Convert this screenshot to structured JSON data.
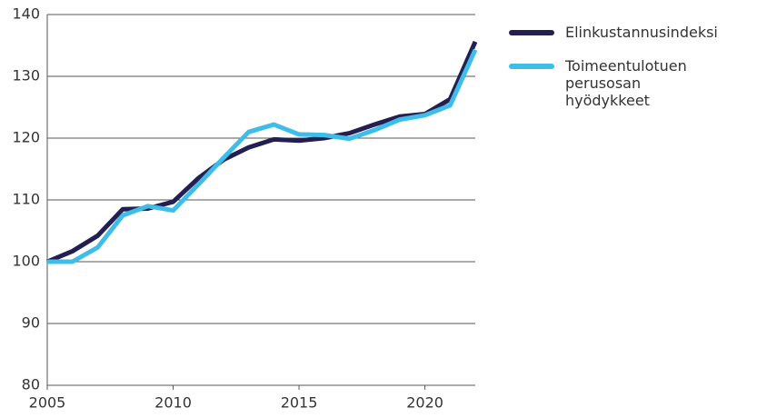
{
  "chart_data": {
    "type": "line",
    "x": [
      2005,
      2006,
      2007,
      2008,
      2009,
      2010,
      2011,
      2012,
      2013,
      2014,
      2015,
      2016,
      2017,
      2018,
      2019,
      2020,
      2021,
      2022
    ],
    "series": [
      {
        "name": "Elinkustannusindeksi",
        "color": "#231f52",
        "values": [
          100,
          101.7,
          104.2,
          108.5,
          108.6,
          109.7,
          113.5,
          116.5,
          118.5,
          119.8,
          119.6,
          120,
          120.8,
          122.2,
          123.5,
          123.9,
          126.3,
          135.6
        ]
      },
      {
        "name": "Toimeentulotuen perusosan hyödykkeet",
        "color": "#3dbde8",
        "values": [
          100,
          100,
          102.3,
          107.5,
          109,
          108.3,
          112.5,
          116.8,
          121,
          122.2,
          120.6,
          120.5,
          119.9,
          121.3,
          123,
          123.7,
          125.3,
          134.3
        ]
      }
    ],
    "xlim": [
      2005,
      2022
    ],
    "xticks": [
      2005,
      2010,
      2015,
      2020
    ],
    "ylim": [
      80,
      140
    ],
    "yticks": [
      80,
      90,
      100,
      110,
      120,
      130,
      140
    ],
    "grid": true,
    "legend": "right"
  }
}
